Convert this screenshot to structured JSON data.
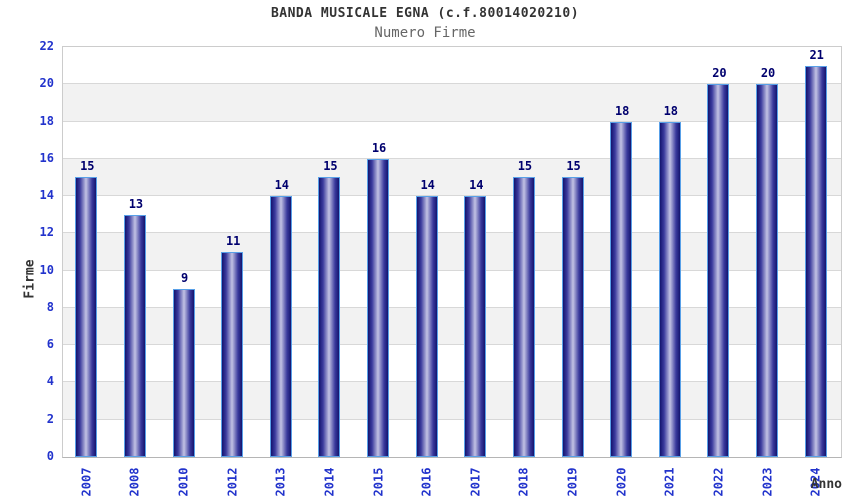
{
  "header": {
    "title": "BANDA MUSICALE EGNA (c.f.80014020210)",
    "subtitle": "Numero Firme"
  },
  "chart_data": {
    "type": "bar",
    "title": "BANDA MUSICALE EGNA (c.f.80014020210)",
    "subtitle": "Numero Firme",
    "categories": [
      "2007",
      "2008",
      "2010",
      "2012",
      "2013",
      "2014",
      "2015",
      "2016",
      "2017",
      "2018",
      "2019",
      "2020",
      "2021",
      "2022",
      "2023",
      "2024"
    ],
    "values": [
      15,
      13,
      9,
      11,
      14,
      15,
      16,
      14,
      14,
      15,
      15,
      18,
      18,
      20,
      20,
      21
    ],
    "xlabel": "Anno",
    "ylabel": "Firme",
    "ylim": [
      0,
      22
    ],
    "ytick_step": 2,
    "legend": "none",
    "grid": "horizontal-bands",
    "colors": {
      "bar_edge": "#14146e",
      "bar_shoulder": "#3a3a9d",
      "bar_center": "#c2c2e4",
      "bar_border": "#58a0e8",
      "value_label": "#00006e",
      "tick_label": "#2233cc",
      "band_light": "#ffffff",
      "band_dark": "#f2f2f2",
      "gridline": "#d8d8d8",
      "axis_title": "#333333",
      "title": "#333333",
      "subtitle": "#666666"
    }
  }
}
